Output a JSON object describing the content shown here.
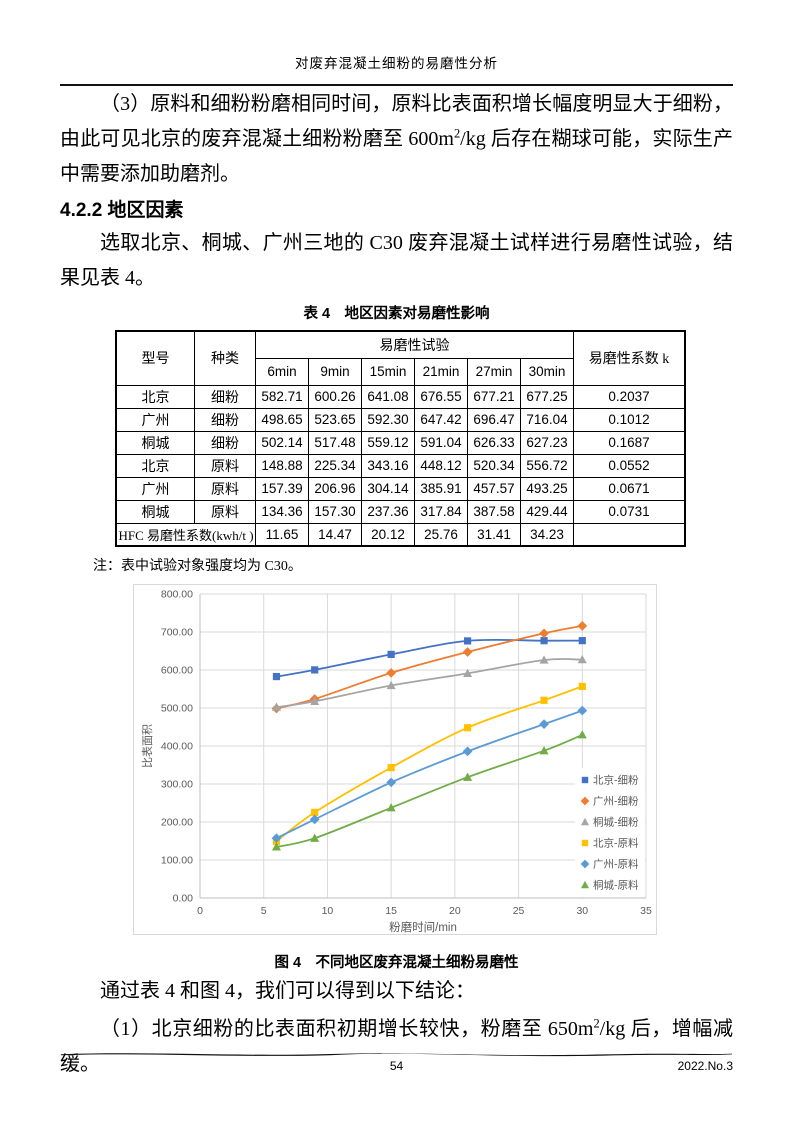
{
  "header": {
    "title": "对废弃混凝土细粉的易磨性分析"
  },
  "paragraphs": {
    "p1": [
      {
        "t": "（3）原料和细粉粉磨相同时间，原料比表面积增长幅度明显大于细粉，由此可见北京的废弃混凝土细粉粉磨至 600m"
      },
      {
        "sup": "2"
      },
      {
        "t": "/kg 后存在糊球可能，实际生产中需要添加助磨剂。"
      }
    ],
    "section_heading": "4.2.2 地区因素",
    "p2": "选取北京、桐城、广州三地的 C30 废弃混凝土试样进行易磨性试验，结果见表 4。",
    "p3": "通过表 4 和图 4，我们可以得到以下结论：",
    "p4": [
      {
        "t": "（1）北京细粉的比表面积初期增长较快，粉磨至 650m"
      },
      {
        "sup": "2"
      },
      {
        "t": "/kg 后，增幅减缓。"
      }
    ]
  },
  "table": {
    "caption": "表 4　地区因素对易磨性影响",
    "col1": "型号",
    "col2": "种类",
    "group_header": "易磨性试验",
    "k_header": "易磨性系数 k",
    "time_headers": [
      "6min",
      "9min",
      "15min",
      "21min",
      "27min",
      "30min"
    ],
    "rows": [
      {
        "model": "北京",
        "kind": "细粉",
        "values": [
          "582.71",
          "600.26",
          "641.08",
          "676.55",
          "677.21",
          "677.25"
        ],
        "k": "0.2037"
      },
      {
        "model": "广州",
        "kind": "细粉",
        "values": [
          "498.65",
          "523.65",
          "592.30",
          "647.42",
          "696.47",
          "716.04"
        ],
        "k": "0.1012"
      },
      {
        "model": "桐城",
        "kind": "细粉",
        "values": [
          "502.14",
          "517.48",
          "559.12",
          "591.04",
          "626.33",
          "627.23"
        ],
        "k": "0.1687"
      },
      {
        "model": "北京",
        "kind": "原料",
        "values": [
          "148.88",
          "225.34",
          "343.16",
          "448.12",
          "520.34",
          "556.72"
        ],
        "k": "0.0552"
      },
      {
        "model": "广州",
        "kind": "原料",
        "values": [
          "157.39",
          "206.96",
          "304.14",
          "385.91",
          "457.57",
          "493.25"
        ],
        "k": "0.0671"
      },
      {
        "model": "桐城",
        "kind": "原料",
        "values": [
          "134.36",
          "157.30",
          "237.36",
          "317.84",
          "387.58",
          "429.44"
        ],
        "k": "0.0731"
      }
    ],
    "hfc_label": "HFC 易磨性系数(kwh/t )",
    "hfc_values": [
      "11.65",
      "14.47",
      "20.12",
      "25.76",
      "31.41",
      "34.23"
    ],
    "note": "注：表中试验对象强度均为 C30。"
  },
  "chart_data": {
    "type": "line",
    "x": [
      6,
      9,
      15,
      21,
      27,
      30
    ],
    "series": [
      {
        "name": "北京-细粉",
        "color": "#4472C4",
        "marker": "square",
        "values": [
          582.71,
          600.26,
          641.08,
          676.55,
          677.21,
          677.25
        ]
      },
      {
        "name": "广州-细粉",
        "color": "#ED7D31",
        "marker": "diamond",
        "values": [
          498.65,
          523.65,
          592.3,
          647.42,
          696.47,
          716.04
        ]
      },
      {
        "name": "桐城-细粉",
        "color": "#A5A5A5",
        "marker": "triangle",
        "values": [
          502.14,
          517.48,
          559.12,
          591.04,
          626.33,
          627.23
        ]
      },
      {
        "name": "北京-原料",
        "color": "#FFC000",
        "marker": "square",
        "values": [
          148.88,
          225.34,
          343.16,
          448.12,
          520.34,
          556.72
        ]
      },
      {
        "name": "广州-原料",
        "color": "#5B9BD5",
        "marker": "diamond",
        "values": [
          157.39,
          206.96,
          304.14,
          385.91,
          457.57,
          493.25
        ]
      },
      {
        "name": "桐城-原料",
        "color": "#70AD47",
        "marker": "triangle",
        "values": [
          134.36,
          157.3,
          237.36,
          317.84,
          387.58,
          429.44
        ]
      }
    ],
    "xlabel": "粉磨时间/min",
    "ylabel": "比表面积",
    "xlim": [
      0,
      35
    ],
    "x_tick_step": 5,
    "x_tick_labels": [
      "0",
      "5",
      "10",
      "15",
      "20",
      "25",
      "30",
      "35"
    ],
    "ylim": [
      0,
      800
    ],
    "y_tick_step": 100,
    "y_tick_labels": [
      "0.00",
      "100.00",
      "200.00",
      "300.00",
      "400.00",
      "500.00",
      "600.00",
      "700.00",
      "800.00"
    ],
    "grid": true,
    "legend_position": "inside-right",
    "axis_text_color": "#595959",
    "gridline_color": "#D9D9D9",
    "axis_line_color": "#BFBFBF"
  },
  "figure": {
    "caption": "图 4　不同地区废弃混凝土细粉易磨性"
  },
  "footer": {
    "page_number": "54",
    "issue": "2022.No.3"
  }
}
